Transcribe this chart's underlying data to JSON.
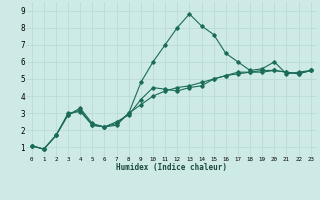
{
  "xlabel": "Humidex (Indice chaleur)",
  "ylabel": "",
  "background_color": "#ceeae6",
  "line_color": "#1a6b5a",
  "xlim": [
    -0.5,
    23.5
  ],
  "ylim": [
    0.5,
    9.5
  ],
  "xtick_labels": [
    "0",
    "1",
    "2",
    "3",
    "4",
    "5",
    "6",
    "7",
    "8",
    "9",
    "10",
    "11",
    "12",
    "13",
    "14",
    "15",
    "16",
    "17",
    "18",
    "19",
    "20",
    "21",
    "22",
    "23"
  ],
  "ytick_labels": [
    "1",
    "2",
    "3",
    "4",
    "5",
    "6",
    "7",
    "8",
    "9"
  ],
  "grid_color": "#b8d8d4",
  "line1_x": [
    0,
    1,
    2,
    3,
    4,
    5,
    6,
    7,
    8,
    9,
    10,
    11,
    12,
    13,
    14,
    15,
    16,
    17,
    18,
    19,
    20,
    21,
    22,
    23
  ],
  "line1_y": [
    1.1,
    0.9,
    1.7,
    2.9,
    3.2,
    2.3,
    2.2,
    2.4,
    3.0,
    4.8,
    6.0,
    7.0,
    8.0,
    8.8,
    8.1,
    7.6,
    6.5,
    6.0,
    5.5,
    5.6,
    6.0,
    5.3,
    5.4,
    5.5
  ],
  "line2_x": [
    0,
    1,
    2,
    3,
    4,
    5,
    6,
    7,
    8,
    9,
    10,
    11,
    12,
    13,
    14,
    15,
    16,
    17,
    18,
    19,
    20,
    21,
    22,
    23
  ],
  "line2_y": [
    1.1,
    0.9,
    1.7,
    2.9,
    3.3,
    2.4,
    2.2,
    2.5,
    2.9,
    3.8,
    4.5,
    4.4,
    4.3,
    4.5,
    4.6,
    5.0,
    5.2,
    5.4,
    5.4,
    5.5,
    5.5,
    5.4,
    5.3,
    5.5
  ],
  "line3_x": [
    0,
    1,
    2,
    3,
    4,
    5,
    6,
    7,
    8,
    9,
    10,
    11,
    12,
    13,
    14,
    15,
    16,
    17,
    18,
    19,
    20,
    21,
    22,
    23
  ],
  "line3_y": [
    1.1,
    0.9,
    1.7,
    3.0,
    3.1,
    2.3,
    2.2,
    2.3,
    3.0,
    3.5,
    4.0,
    4.3,
    4.5,
    4.6,
    4.8,
    5.0,
    5.2,
    5.3,
    5.4,
    5.4,
    5.5,
    5.4,
    5.3,
    5.5
  ]
}
